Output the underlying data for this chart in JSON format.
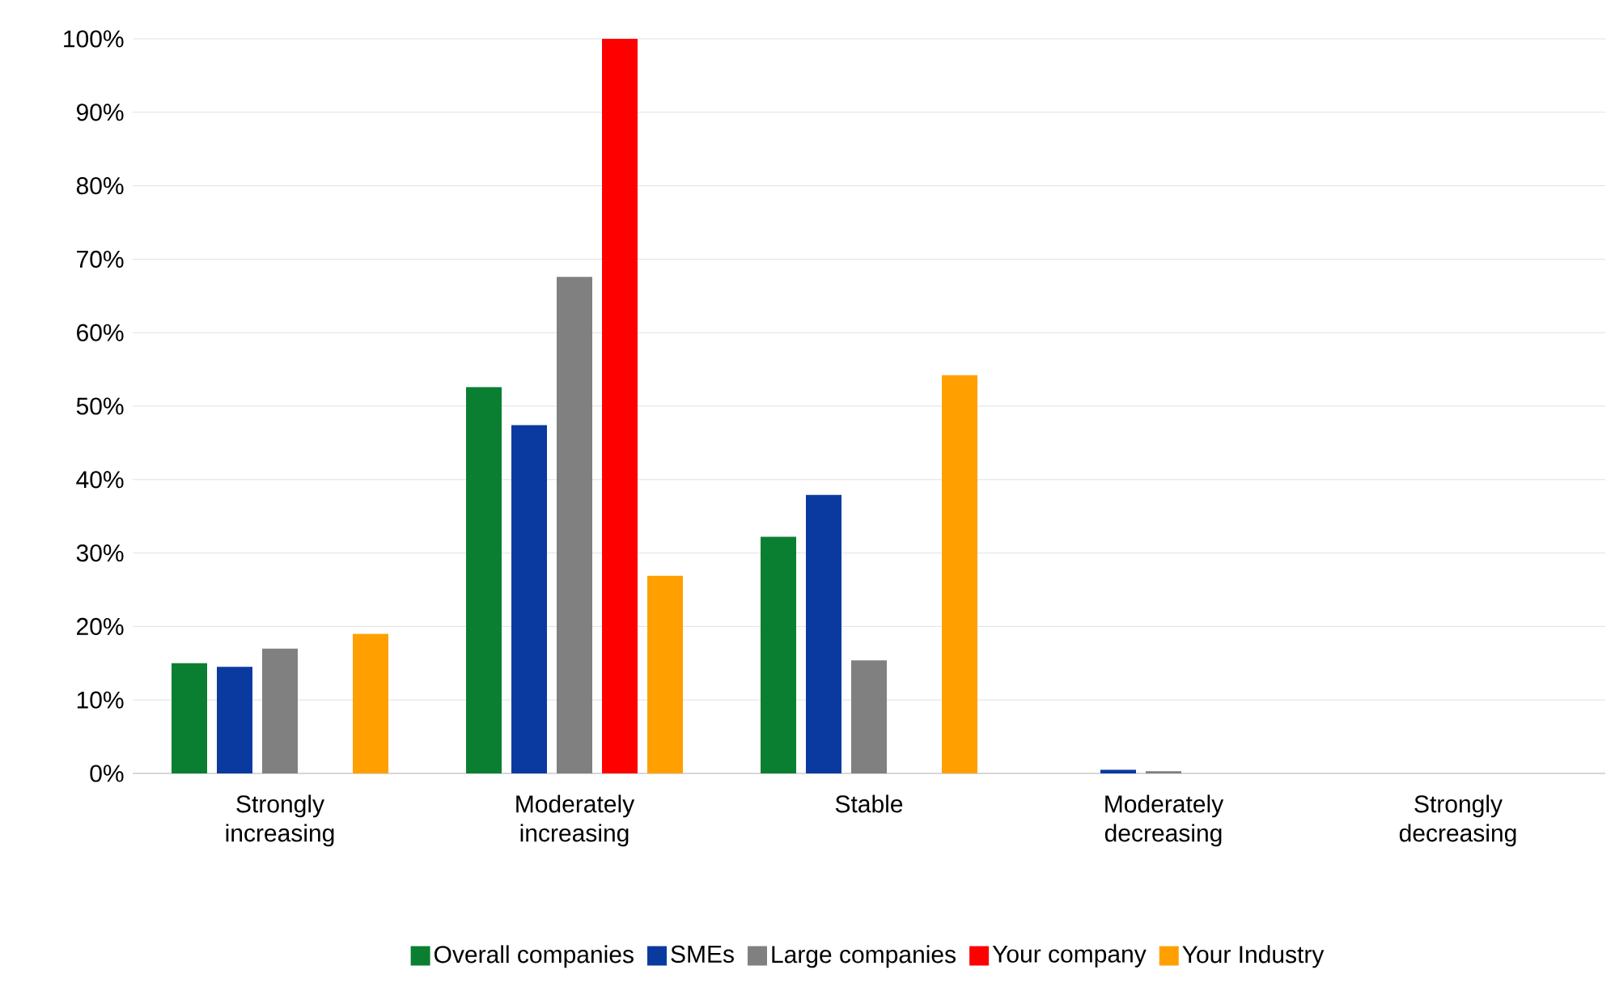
{
  "chart_data": {
    "type": "bar",
    "categories": [
      "Strongly increasing",
      "Moderately increasing",
      "Stable",
      "Moderately decreasing",
      "Strongly decreasing"
    ],
    "series": [
      {
        "name": "Overall companies",
        "color": "#0a7f32",
        "values": [
          15,
          52.6,
          32.2,
          0,
          0
        ]
      },
      {
        "name": "SMEs",
        "color": "#0a3aa0",
        "values": [
          14.5,
          47.4,
          37.9,
          0.5,
          0
        ]
      },
      {
        "name": "Large companies",
        "color": "#808080",
        "values": [
          17,
          67.6,
          15.4,
          0.3,
          0
        ]
      },
      {
        "name": "Your company",
        "color": "#ff0000",
        "values": [
          0,
          100,
          0,
          0,
          0
        ]
      },
      {
        "name": "Your Industry",
        "color": "#ffa000",
        "values": [
          19,
          26.9,
          54.2,
          0,
          0
        ]
      }
    ],
    "ylim": [
      0,
      100
    ],
    "yticks": [
      {
        "value": 0,
        "label": "0%"
      },
      {
        "value": 10,
        "label": "10%"
      },
      {
        "value": 20,
        "label": "20%"
      },
      {
        "value": 30,
        "label": "30%"
      },
      {
        "value": 40,
        "label": "40%"
      },
      {
        "value": 50,
        "label": "50%"
      },
      {
        "value": 60,
        "label": "60%"
      },
      {
        "value": 70,
        "label": "70%"
      },
      {
        "value": 80,
        "label": "80%"
      },
      {
        "value": 90,
        "label": "90%"
      },
      {
        "value": 100,
        "label": "100%"
      }
    ],
    "grid": "y",
    "legend": "bottom"
  }
}
